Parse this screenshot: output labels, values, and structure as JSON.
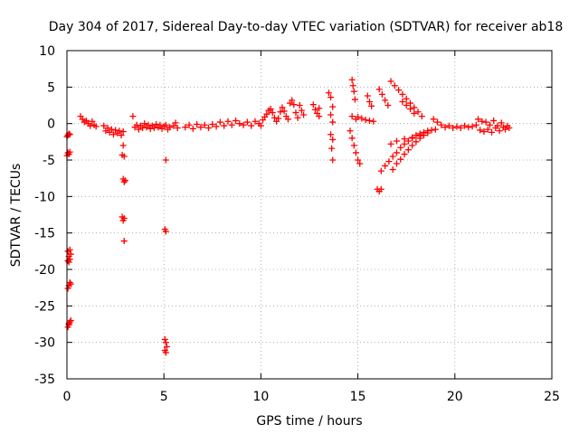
{
  "chart_data": {
    "type": "scatter",
    "title": "Day 304 of 2017, Sidereal Day-to-day VTEC variation (SDTVAR) for receiver ab18",
    "xlabel": "GPS time / hours",
    "ylabel": "SDTVAR / TECUs",
    "xlim": [
      0,
      25
    ],
    "ylim": [
      -35,
      10
    ],
    "xticks": [
      "0",
      "5",
      "10",
      "15",
      "20",
      "25"
    ],
    "yticks": [
      "10",
      "5",
      "0",
      "-5",
      "-10",
      "-15",
      "-20",
      "-25",
      "-30",
      "-35"
    ],
    "grid": true,
    "marker": "+",
    "color": "#ff0000",
    "series": [
      {
        "name": "SDTVAR",
        "points": [
          [
            0.0,
            -1.8
          ],
          [
            0.05,
            -1.6
          ],
          [
            0.1,
            -1.4
          ],
          [
            0.15,
            -1.5
          ],
          [
            0.0,
            -4.4
          ],
          [
            0.05,
            -4.0
          ],
          [
            0.1,
            -4.2
          ],
          [
            0.15,
            -3.9
          ],
          [
            0.05,
            -17.5
          ],
          [
            0.1,
            -18.2
          ],
          [
            0.15,
            -18.6
          ],
          [
            0.1,
            -19.0
          ],
          [
            0.2,
            -17.9
          ],
          [
            0.15,
            -17.3
          ],
          [
            0.05,
            -18.8
          ],
          [
            0.05,
            -22.6
          ],
          [
            0.1,
            -22.2
          ],
          [
            0.15,
            -21.8
          ],
          [
            0.2,
            -22.0
          ],
          [
            0.05,
            -27.9
          ],
          [
            0.1,
            -27.6
          ],
          [
            0.15,
            -27.2
          ],
          [
            0.2,
            -27.0
          ],
          [
            0.1,
            -27.4
          ],
          [
            0.7,
            1.0
          ],
          [
            0.8,
            0.6
          ],
          [
            0.9,
            0.2
          ],
          [
            1.0,
            0.4
          ],
          [
            1.1,
            0.0
          ],
          [
            1.2,
            -0.3
          ],
          [
            1.3,
            0.3
          ],
          [
            1.4,
            -0.2
          ],
          [
            1.5,
            -0.4
          ],
          [
            1.9,
            -0.3
          ],
          [
            2.0,
            -1.0
          ],
          [
            2.1,
            -0.6
          ],
          [
            2.2,
            -1.2
          ],
          [
            2.3,
            -0.8
          ],
          [
            2.4,
            -1.5
          ],
          [
            2.5,
            -0.9
          ],
          [
            2.6,
            -1.3
          ],
          [
            2.7,
            -1.0
          ],
          [
            2.8,
            -1.6
          ],
          [
            2.9,
            -1.1
          ],
          [
            2.9,
            -3.0
          ],
          [
            2.85,
            -4.3
          ],
          [
            2.95,
            -4.5
          ],
          [
            2.9,
            -7.6
          ],
          [
            2.95,
            -8.0
          ],
          [
            3.0,
            -7.8
          ],
          [
            2.85,
            -12.8
          ],
          [
            2.9,
            -13.3
          ],
          [
            2.95,
            -13.0
          ],
          [
            2.95,
            -16.1
          ],
          [
            3.4,
            1.0
          ],
          [
            3.5,
            -0.5
          ],
          [
            3.6,
            -0.2
          ],
          [
            3.7,
            -0.8
          ],
          [
            3.8,
            -0.3
          ],
          [
            3.9,
            -0.6
          ],
          [
            4.0,
            0.0
          ],
          [
            4.1,
            -0.5
          ],
          [
            4.2,
            -0.2
          ],
          [
            4.3,
            -0.7
          ],
          [
            4.4,
            -0.3
          ],
          [
            4.5,
            -0.6
          ],
          [
            4.6,
            -0.1
          ],
          [
            4.7,
            -0.5
          ],
          [
            4.8,
            -0.2
          ],
          [
            4.9,
            -0.7
          ],
          [
            5.0,
            -0.4
          ],
          [
            5.1,
            -0.2
          ],
          [
            5.2,
            -0.8
          ],
          [
            5.3,
            -0.5
          ],
          [
            5.1,
            -5.0
          ],
          [
            5.05,
            -14.5
          ],
          [
            5.1,
            -14.8
          ],
          [
            5.05,
            -29.6
          ],
          [
            5.1,
            -30.0
          ],
          [
            5.15,
            -30.6
          ],
          [
            5.05,
            -31.1
          ],
          [
            5.1,
            -31.4
          ],
          [
            5.5,
            -0.3
          ],
          [
            5.6,
            0.1
          ],
          [
            5.7,
            -0.6
          ],
          [
            6.1,
            -0.5
          ],
          [
            6.3,
            -0.2
          ],
          [
            6.5,
            -0.7
          ],
          [
            6.7,
            -0.1
          ],
          [
            6.9,
            -0.5
          ],
          [
            7.1,
            -0.2
          ],
          [
            7.3,
            -0.6
          ],
          [
            7.5,
            -0.1
          ],
          [
            7.7,
            -0.4
          ],
          [
            7.9,
            0.2
          ],
          [
            8.1,
            -0.3
          ],
          [
            8.3,
            0.3
          ],
          [
            8.5,
            -0.2
          ],
          [
            8.7,
            0.4
          ],
          [
            8.9,
            0.0
          ],
          [
            9.1,
            -0.2
          ],
          [
            9.3,
            0.2
          ],
          [
            9.5,
            -0.3
          ],
          [
            9.7,
            0.3
          ],
          [
            9.9,
            0.0
          ],
          [
            10.0,
            -0.3
          ],
          [
            10.1,
            0.5
          ],
          [
            10.2,
            0.9
          ],
          [
            10.3,
            1.3
          ],
          [
            10.4,
            1.8
          ],
          [
            10.5,
            2.0
          ],
          [
            10.6,
            1.5
          ],
          [
            10.7,
            0.8
          ],
          [
            10.8,
            0.3
          ],
          [
            10.9,
            0.7
          ],
          [
            11.0,
            1.6
          ],
          [
            11.1,
            2.2
          ],
          [
            11.2,
            1.7
          ],
          [
            11.3,
            1.0
          ],
          [
            11.4,
            0.6
          ],
          [
            11.5,
            2.8
          ],
          [
            11.6,
            3.2
          ],
          [
            11.7,
            2.6
          ],
          [
            11.8,
            1.5
          ],
          [
            11.9,
            0.8
          ],
          [
            12.0,
            2.5
          ],
          [
            12.1,
            1.8
          ],
          [
            12.2,
            1.2
          ],
          [
            12.7,
            2.6
          ],
          [
            12.8,
            1.9
          ],
          [
            12.9,
            1.4
          ],
          [
            13.0,
            2.1
          ],
          [
            13.0,
            1.0
          ],
          [
            13.5,
            4.2
          ],
          [
            13.6,
            3.6
          ],
          [
            13.7,
            2.3
          ],
          [
            13.6,
            1.2
          ],
          [
            13.7,
            0.2
          ],
          [
            13.6,
            -1.5
          ],
          [
            13.7,
            -2.2
          ],
          [
            13.65,
            -3.4
          ],
          [
            13.7,
            -5.0
          ],
          [
            14.7,
            6.0
          ],
          [
            14.75,
            5.2
          ],
          [
            14.8,
            4.4
          ],
          [
            14.85,
            3.3
          ],
          [
            14.7,
            1.0
          ],
          [
            14.9,
            0.6
          ],
          [
            15.0,
            0.9
          ],
          [
            15.2,
            0.7
          ],
          [
            15.4,
            0.5
          ],
          [
            15.6,
            0.4
          ],
          [
            15.8,
            0.3
          ],
          [
            14.6,
            -1.0
          ],
          [
            14.7,
            -2.0
          ],
          [
            14.8,
            -3.0
          ],
          [
            14.9,
            -4.0
          ],
          [
            15.0,
            -5.0
          ],
          [
            15.1,
            -5.5
          ],
          [
            15.5,
            3.8
          ],
          [
            15.6,
            3.0
          ],
          [
            15.7,
            2.4
          ],
          [
            16.1,
            4.7
          ],
          [
            16.25,
            4.0
          ],
          [
            16.4,
            3.2
          ],
          [
            16.55,
            2.5
          ],
          [
            16.0,
            -9.0
          ],
          [
            16.1,
            -9.3
          ],
          [
            16.2,
            -9.0
          ],
          [
            16.2,
            -6.5
          ],
          [
            16.4,
            -5.8
          ],
          [
            16.6,
            -5.2
          ],
          [
            16.8,
            -4.5
          ],
          [
            17.0,
            -4.0
          ],
          [
            17.2,
            -3.3
          ],
          [
            17.4,
            -2.8
          ],
          [
            17.6,
            -2.4
          ],
          [
            17.8,
            -2.0
          ],
          [
            18.0,
            -1.6
          ],
          [
            18.2,
            -1.4
          ],
          [
            18.4,
            -1.2
          ],
          [
            18.6,
            -1.0
          ],
          [
            18.8,
            -0.9
          ],
          [
            19.0,
            -0.8
          ],
          [
            16.8,
            -6.3
          ],
          [
            17.0,
            -5.5
          ],
          [
            17.2,
            -4.9
          ],
          [
            17.4,
            -4.2
          ],
          [
            17.6,
            -3.6
          ],
          [
            17.8,
            -3.0
          ],
          [
            18.0,
            -2.5
          ],
          [
            18.2,
            -2.0
          ],
          [
            18.4,
            -1.6
          ],
          [
            18.6,
            -1.3
          ],
          [
            16.7,
            -2.8
          ],
          [
            17.0,
            -2.4
          ],
          [
            17.4,
            -2.1
          ],
          [
            17.8,
            -1.9
          ],
          [
            18.2,
            -1.7
          ],
          [
            16.7,
            5.8
          ],
          [
            16.9,
            5.2
          ],
          [
            17.1,
            4.6
          ],
          [
            17.3,
            4.0
          ],
          [
            17.5,
            3.4
          ],
          [
            17.7,
            2.8
          ],
          [
            17.9,
            2.2
          ],
          [
            18.1,
            1.6
          ],
          [
            18.3,
            1.0
          ],
          [
            17.3,
            3.0
          ],
          [
            17.5,
            2.5
          ],
          [
            17.7,
            2.0
          ],
          [
            17.9,
            1.4
          ],
          [
            18.9,
            0.6
          ],
          [
            19.1,
            0.2
          ],
          [
            19.3,
            -0.2
          ],
          [
            19.5,
            -0.5
          ],
          [
            19.7,
            -0.3
          ],
          [
            19.9,
            -0.6
          ],
          [
            20.1,
            -0.4
          ],
          [
            20.3,
            -0.6
          ],
          [
            20.5,
            -0.3
          ],
          [
            20.7,
            -0.5
          ],
          [
            20.9,
            -0.4
          ],
          [
            21.1,
            -0.2
          ],
          [
            21.2,
            0.6
          ],
          [
            21.3,
            -0.9
          ],
          [
            21.4,
            0.3
          ],
          [
            21.5,
            -1.1
          ],
          [
            21.6,
            0.2
          ],
          [
            21.7,
            -0.8
          ],
          [
            21.8,
            -0.2
          ],
          [
            21.9,
            -1.2
          ],
          [
            22.0,
            0.4
          ],
          [
            22.1,
            -0.6
          ],
          [
            22.2,
            -0.3
          ],
          [
            22.3,
            -1.0
          ],
          [
            22.4,
            0.1
          ],
          [
            22.5,
            -0.5
          ],
          [
            22.6,
            -0.8
          ],
          [
            22.7,
            -0.3
          ],
          [
            22.8,
            -0.6
          ]
        ]
      }
    ]
  }
}
